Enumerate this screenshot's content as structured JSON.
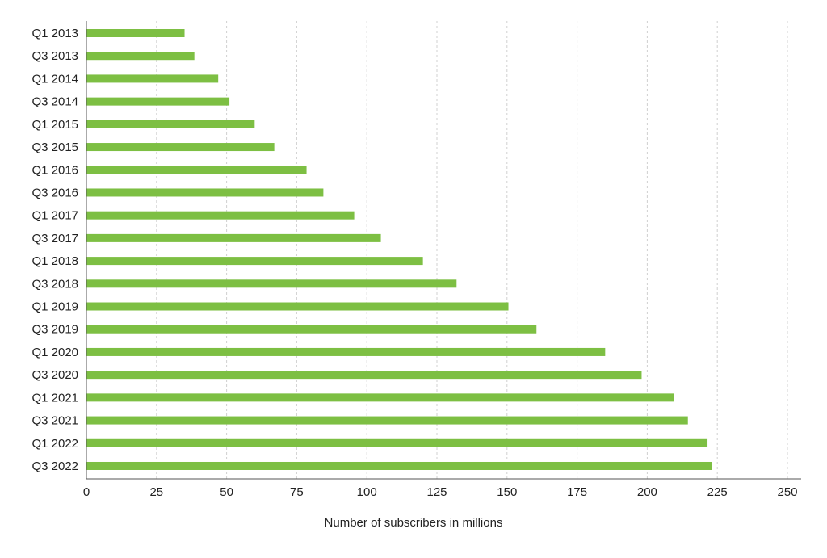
{
  "colors": {
    "bar": "#7dbf43",
    "grid": "#d0d0d0",
    "axis": "#555555",
    "text": "#222222"
  },
  "chart_data": {
    "type": "bar",
    "orientation": "horizontal",
    "title": "",
    "xlabel": "Number of subscribers in millions",
    "ylabel": "",
    "xlim": [
      0,
      255
    ],
    "xticks": [
      0,
      25,
      50,
      75,
      100,
      125,
      150,
      175,
      200,
      225,
      250
    ],
    "grid": "vertical dashed",
    "legend": "none",
    "categories": [
      "Q1 2013",
      "Q3 2013",
      "Q1 2014",
      "Q3 2014",
      "Q1 2015",
      "Q3 2015",
      "Q1 2016",
      "Q3 2016",
      "Q1 2017",
      "Q3 2017",
      "Q1 2018",
      "Q3 2018",
      "Q1 2019",
      "Q3 2019",
      "Q1 2020",
      "Q3 2020",
      "Q1 2021",
      "Q3 2021",
      "Q1 2022",
      "Q3 2022"
    ],
    "values": [
      35,
      38.5,
      47,
      51,
      60,
      67,
      78.5,
      84.5,
      95.5,
      105,
      120,
      132,
      150.5,
      160.5,
      185,
      198,
      209.5,
      214.5,
      221.5,
      223
    ]
  }
}
